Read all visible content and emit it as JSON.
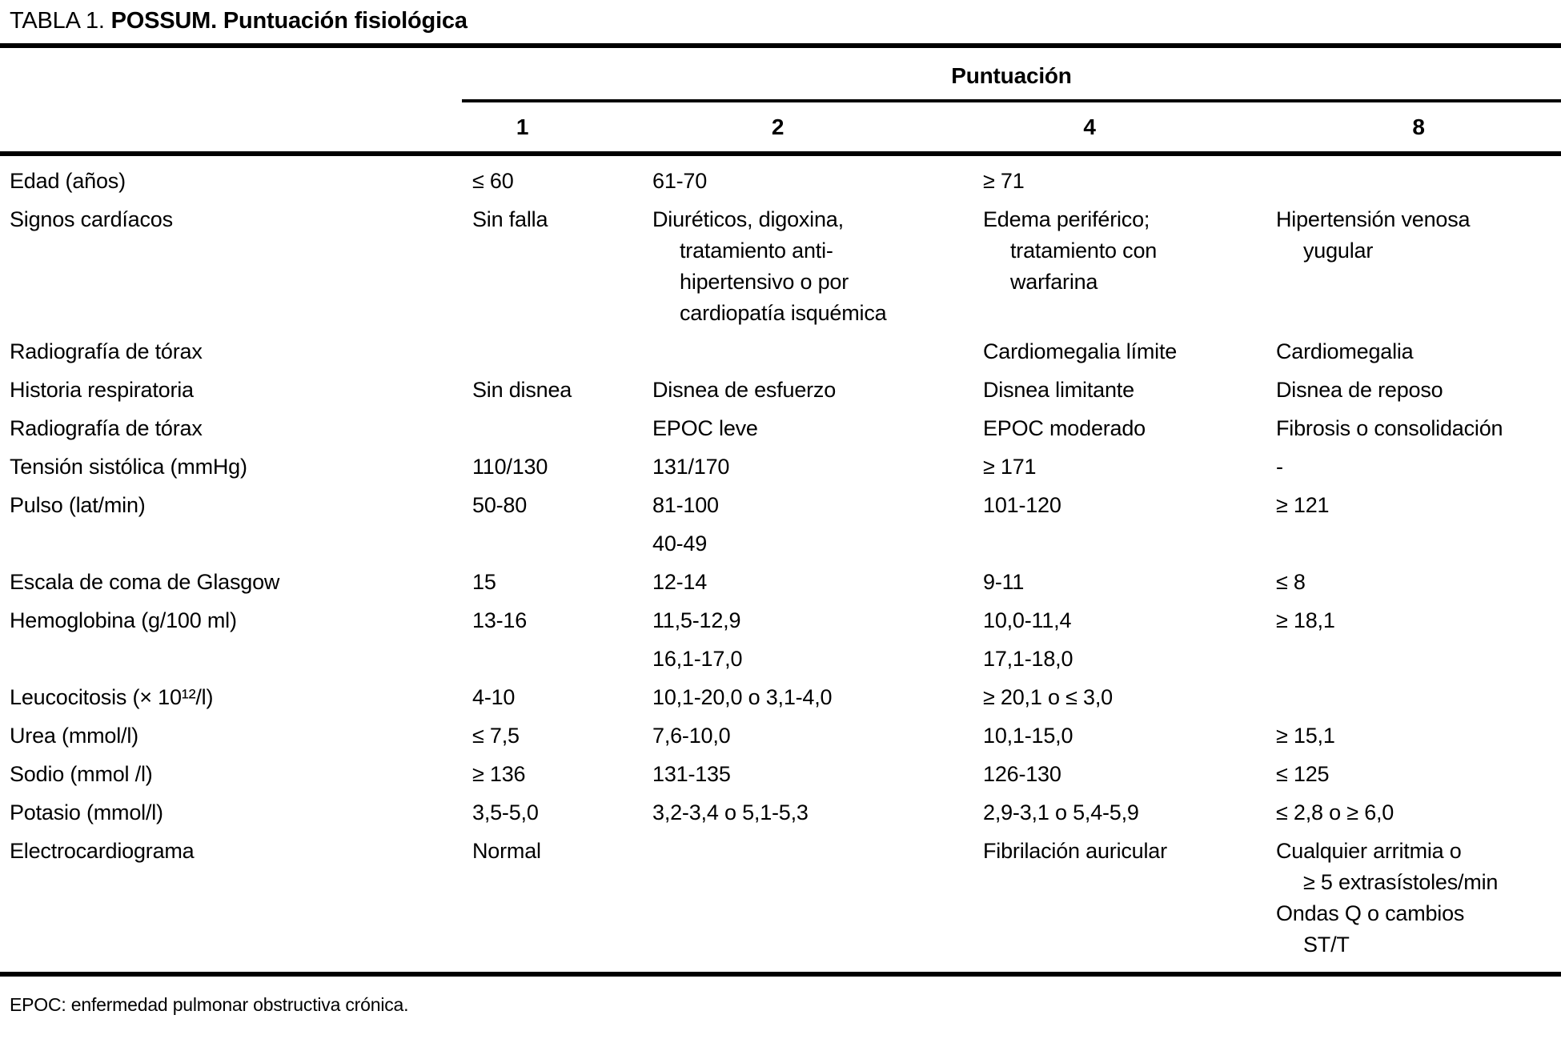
{
  "title": {
    "prefix": "TABLA 1. ",
    "bold": "POSSUM. Puntuación fisiológica"
  },
  "header": {
    "group_label": "Puntuación",
    "score_columns": [
      "1",
      "2",
      "4",
      "8"
    ]
  },
  "rows": [
    {
      "label": "Edad (años)",
      "c1": "≤ 60",
      "c2": "61-70",
      "c4": "≥ 71",
      "c8": ""
    },
    {
      "label": "Signos cardíacos",
      "c1": "Sin falla",
      "c2": [
        [
          "Diuréticos, digoxina,",
          "tratamiento anti-",
          "hipertensivo o por",
          "cardiopatía isquémica"
        ]
      ],
      "c4": [
        [
          "Edema periférico;",
          "tratamiento con",
          "warfarina"
        ]
      ],
      "c8": [
        [
          "Hipertensión venosa",
          "yugular"
        ]
      ]
    },
    {
      "label": "Radiografía de tórax",
      "c1": "",
      "c2": "",
      "c4": "Cardiomegalia límite",
      "c8": "Cardiomegalia"
    },
    {
      "label": "Historia respiratoria",
      "c1": "Sin disnea",
      "c2": "Disnea de esfuerzo",
      "c4": "Disnea limitante",
      "c8": "Disnea de reposo"
    },
    {
      "label": "Radiografía de tórax",
      "c1": "",
      "c2": "EPOC leve",
      "c4": "EPOC moderado",
      "c8": "Fibrosis o consolidación"
    },
    {
      "label": "Tensión sistólica (mmHg)",
      "c1": "110/130",
      "c2": "131/170",
      "c4": "≥ 171",
      "c8": "-"
    },
    {
      "label": "Pulso (lat/min)",
      "c1": "50-80",
      "c2": "81-100",
      "c4": "101-120",
      "c8": "≥ 121"
    },
    {
      "label": "",
      "c1": "",
      "c2": "40-49",
      "c4": "",
      "c8": ""
    },
    {
      "label": "Escala de coma de Glasgow",
      "c1": "15",
      "c2": "12-14",
      "c4": "9-11",
      "c8": "≤ 8"
    },
    {
      "label": "Hemoglobina (g/100 ml)",
      "c1": "13-16",
      "c2": "11,5-12,9",
      "c4": "10,0-11,4",
      "c8": "≥ 18,1"
    },
    {
      "label": "",
      "c1": "",
      "c2": "16,1-17,0",
      "c4": "17,1-18,0",
      "c8": ""
    },
    {
      "label": "Leucocitosis (× 10¹²/l)",
      "c1": "4-10",
      "c2": "10,1-20,0 o 3,1-4,0",
      "c4": "≥ 20,1 o ≤ 3,0",
      "c8": ""
    },
    {
      "label": "Urea (mmol/l)",
      "c1": "≤ 7,5",
      "c2": "7,6-10,0",
      "c4": "10,1-15,0",
      "c8": "≥ 15,1"
    },
    {
      "label": "Sodio (mmol /l)",
      "c1": "≥ 136",
      "c2": "131-135",
      "c4": "126-130",
      "c8": "≤ 125"
    },
    {
      "label": "Potasio (mmol/l)",
      "c1": "3,5-5,0",
      "c2": "3,2-3,4 o 5,1-5,3",
      "c4": "2,9-3,1 o 5,4-5,9",
      "c8": "≤ 2,8 o ≥ 6,0"
    },
    {
      "label": "Electrocardiograma",
      "c1": "Normal",
      "c2": "",
      "c4": "Fibrilación auricular",
      "c8": [
        [
          "Cualquier arritmia o",
          "≥ 5 extrasístoles/min"
        ],
        [
          "Ondas Q o cambios",
          "ST/T"
        ]
      ]
    }
  ],
  "footnote": "EPOC: enfermedad pulmonar obstructiva crónica.",
  "colors": {
    "text": "#000000",
    "background": "#ffffff",
    "rule": "#000000"
  }
}
